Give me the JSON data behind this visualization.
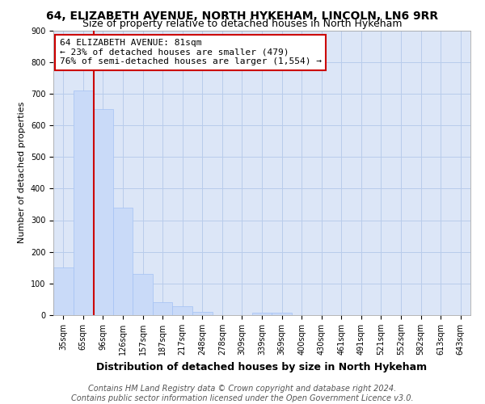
{
  "title1": "64, ELIZABETH AVENUE, NORTH HYKEHAM, LINCOLN, LN6 9RR",
  "title2": "Size of property relative to detached houses in North Hykeham",
  "xlabel": "Distribution of detached houses by size in North Hykeham",
  "ylabel": "Number of detached properties",
  "footnote1": "Contains HM Land Registry data © Crown copyright and database right 2024.",
  "footnote2": "Contains public sector information licensed under the Open Government Licence v3.0.",
  "categories": [
    "35sqm",
    "65sqm",
    "96sqm",
    "126sqm",
    "157sqm",
    "187sqm",
    "217sqm",
    "248sqm",
    "278sqm",
    "309sqm",
    "339sqm",
    "369sqm",
    "400sqm",
    "430sqm",
    "461sqm",
    "491sqm",
    "521sqm",
    "552sqm",
    "582sqm",
    "613sqm",
    "643sqm"
  ],
  "values": [
    150,
    710,
    650,
    340,
    130,
    40,
    27,
    10,
    0,
    0,
    8,
    8,
    0,
    0,
    0,
    0,
    0,
    0,
    0,
    0,
    0
  ],
  "bar_color": "#c9daf8",
  "bar_edge_color": "#a4c2f4",
  "plot_bg_color": "#dce6f7",
  "ylim": [
    0,
    900
  ],
  "yticks": [
    0,
    100,
    200,
    300,
    400,
    500,
    600,
    700,
    800,
    900
  ],
  "red_line_x": 1.55,
  "red_line_color": "#cc0000",
  "annotation_line1": "64 ELIZABETH AVENUE: 81sqm",
  "annotation_line2": "← 23% of detached houses are smaller (479)",
  "annotation_line3": "76% of semi-detached houses are larger (1,554) →",
  "annotation_box_facecolor": "#ffffff",
  "annotation_box_edgecolor": "#cc0000",
  "bg_color": "#ffffff",
  "grid_color": "#b8cceb",
  "title1_fontsize": 10,
  "title2_fontsize": 9,
  "annotation_fontsize": 8,
  "tick_fontsize": 7,
  "xlabel_fontsize": 9,
  "ylabel_fontsize": 8,
  "footnote_fontsize": 7
}
